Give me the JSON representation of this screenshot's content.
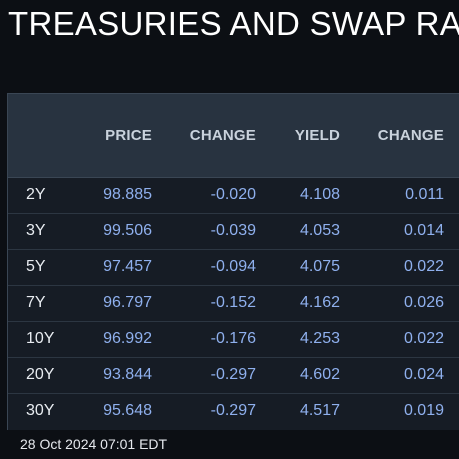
{
  "title": "TREASURIES AND SWAP RA",
  "table": {
    "headers": [
      "",
      "PRICE",
      "CHANGE",
      "YIELD",
      "CHANGE"
    ],
    "rows": [
      {
        "tenor": "2Y",
        "price": "98.885",
        "price_change": "-0.020",
        "yield": "4.108",
        "yield_change": "0.011"
      },
      {
        "tenor": "3Y",
        "price": "99.506",
        "price_change": "-0.039",
        "yield": "4.053",
        "yield_change": "0.014"
      },
      {
        "tenor": "5Y",
        "price": "97.457",
        "price_change": "-0.094",
        "yield": "4.075",
        "yield_change": "0.022"
      },
      {
        "tenor": "7Y",
        "price": "96.797",
        "price_change": "-0.152",
        "yield": "4.162",
        "yield_change": "0.026"
      },
      {
        "tenor": "10Y",
        "price": "96.992",
        "price_change": "-0.176",
        "yield": "4.253",
        "yield_change": "0.022"
      },
      {
        "tenor": "20Y",
        "price": "93.844",
        "price_change": "-0.297",
        "yield": "4.602",
        "yield_change": "0.024"
      },
      {
        "tenor": "30Y",
        "price": "95.648",
        "price_change": "-0.297",
        "yield": "4.517",
        "yield_change": "0.019"
      }
    ]
  },
  "timestamp": "28 Oct 2024 07:01 EDT",
  "colors": {
    "background": "#0c0f14",
    "header_bg": "#283340",
    "row_bg": "#161c25",
    "value_text": "#8fb0ee",
    "label_text": "#e8ecf1"
  }
}
